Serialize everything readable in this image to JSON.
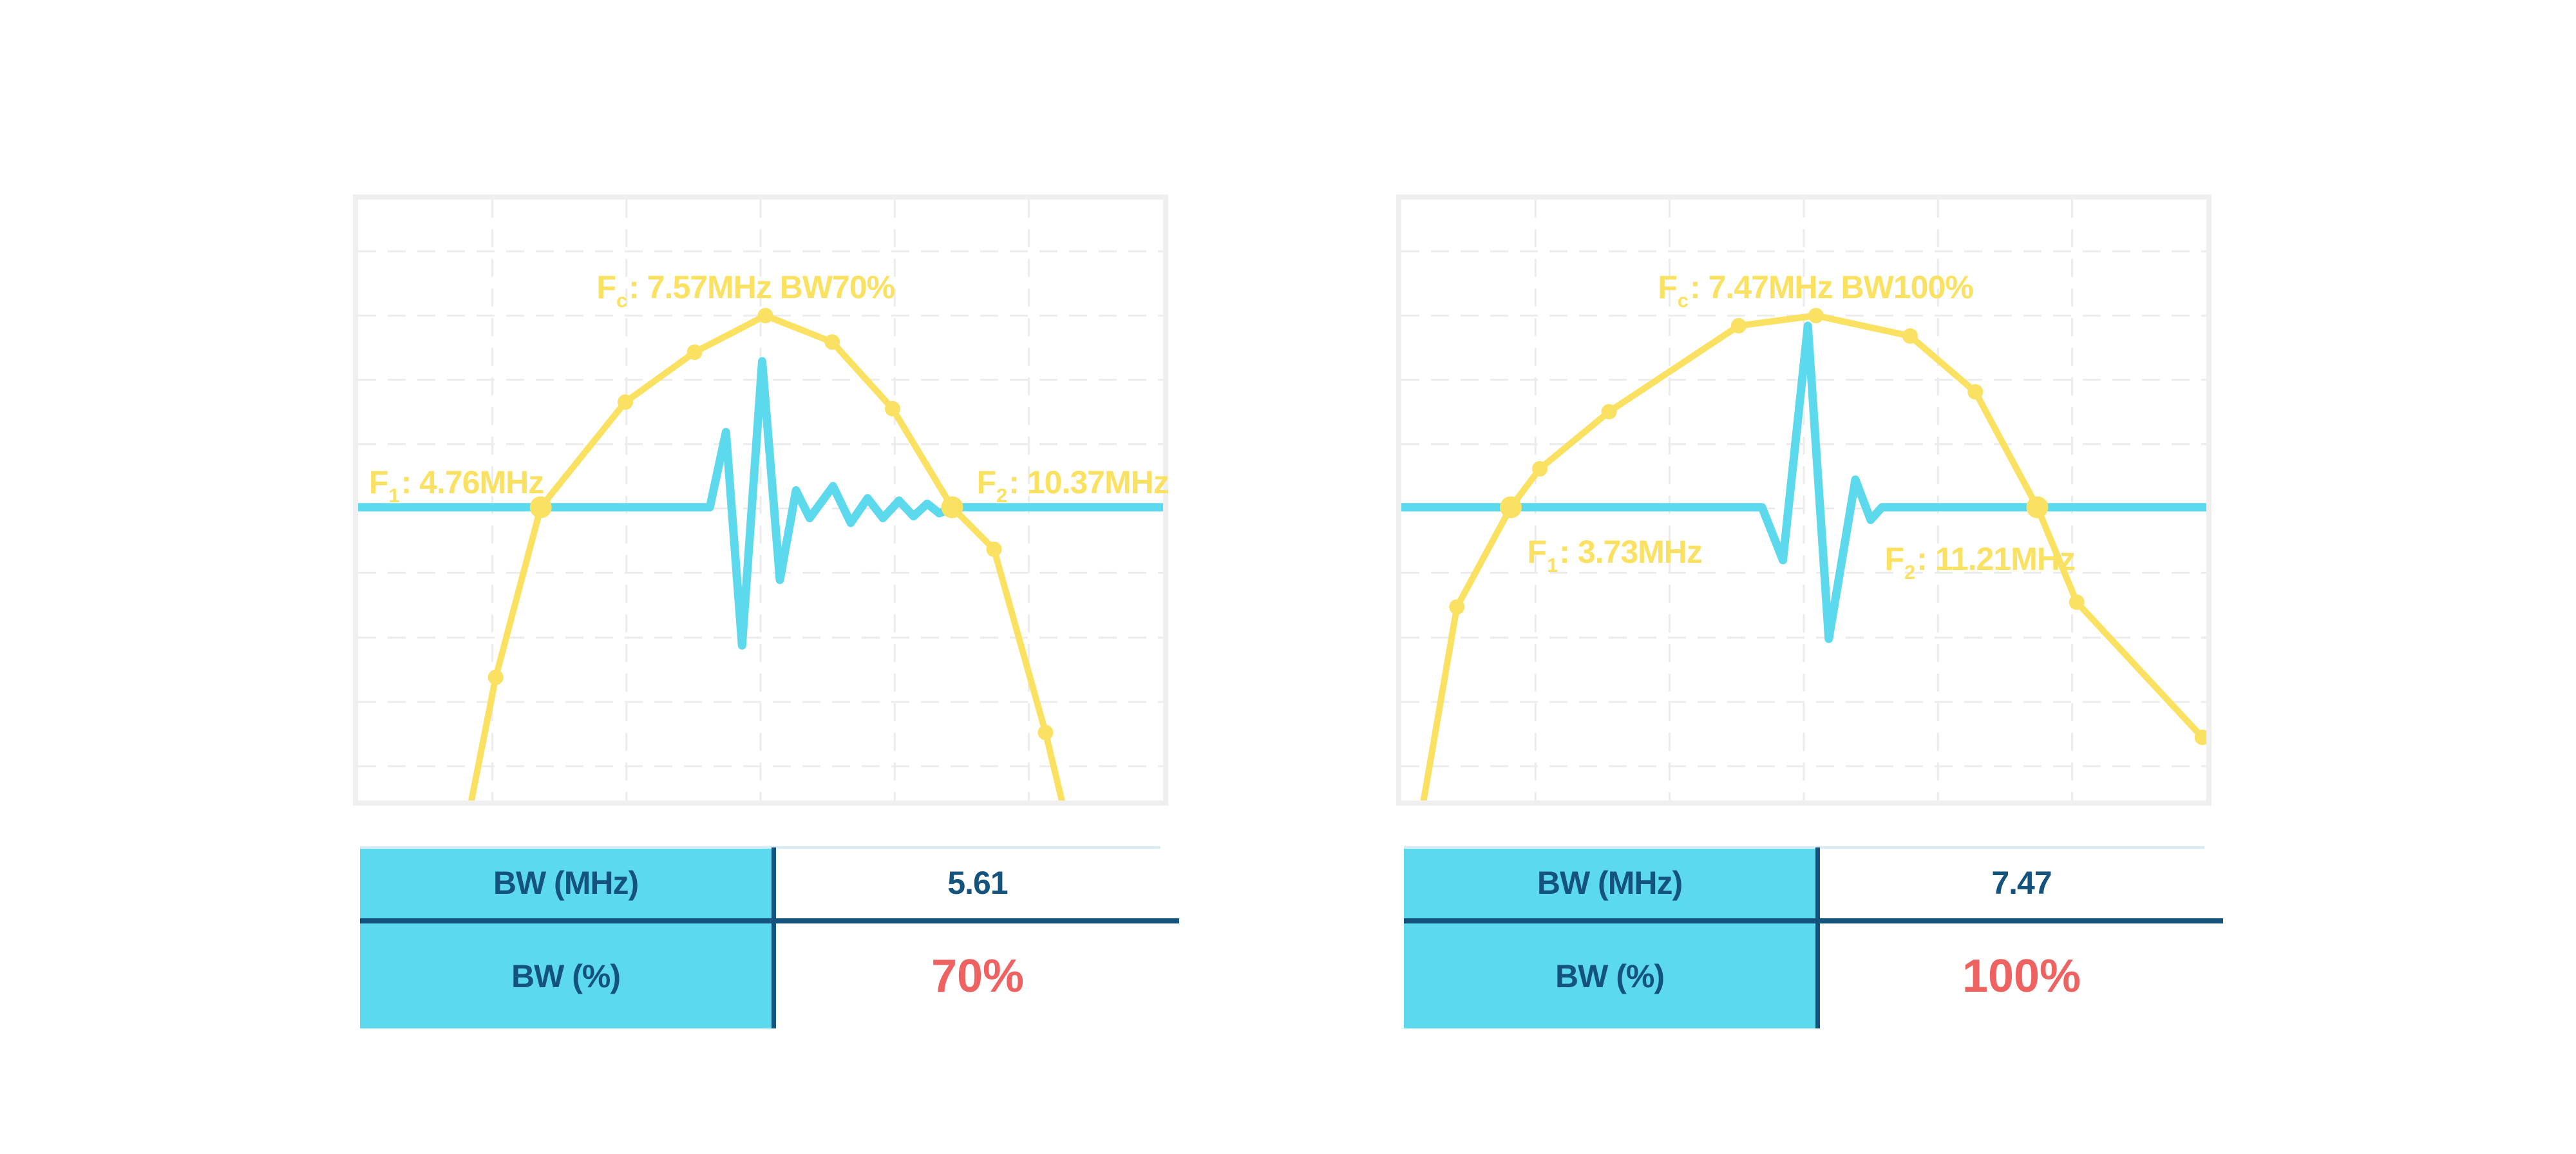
{
  "page": {
    "background": "#ffffff",
    "description": "Two ultrasound transducer bandwidth charts with BW summary tables"
  },
  "palette": {
    "yellow": "#fae161",
    "cyan": "#5cd9ec",
    "navy": "#15537f",
    "red": "#ee6262",
    "grid": "#ececec",
    "chart_border": "#efefef",
    "table_topline": "#d8ecf6",
    "table_header_bg": "#5cd9ec"
  },
  "chart_data": [
    {
      "type": "line",
      "id": "left",
      "title": "",
      "xlabel": "",
      "ylabel": "",
      "axes_ticks": "none visible",
      "legend": "none",
      "values": {
        "fc_mhz": 7.57,
        "f1_mhz": 4.76,
        "f2_mhz": 10.37,
        "bw_mhz": 5.61,
        "bw_percent": 70
      },
      "annotations": {
        "fc": {
          "f": "F",
          "sub": "c",
          "rest": ": 7.57MHz BW70%",
          "x": 0.475,
          "y": 0.137,
          "anchor": "center"
        },
        "f1": {
          "f": "F",
          "sub": "1",
          "rest": ": 4.76MHz",
          "x": 0.237,
          "y": 0.462,
          "anchor": "right"
        },
        "f2": {
          "f": "F",
          "sub": "2",
          "rest": ": 10.37MHz",
          "x": 0.762,
          "y": 0.462,
          "anchor": "left"
        }
      },
      "grid": {
        "v": [
          0.1667,
          0.3333,
          0.5,
          0.6667,
          0.8333
        ],
        "h": [
          0.086,
          0.193,
          0.3,
          0.407,
          0.514,
          0.621,
          0.729,
          0.836,
          0.943
        ]
      },
      "series": [
        {
          "name": "spectrum-envelope",
          "color_key": "yellow",
          "stroke_width": 10,
          "marker_small_r": 12,
          "marker_big_r": 17,
          "points": [
            [
              0.132,
              1.06,
              0
            ],
            [
              0.171,
              0.795,
              1
            ],
            [
              0.227,
              0.512,
              2
            ],
            [
              0.332,
              0.337,
              1
            ],
            [
              0.418,
              0.254,
              1
            ],
            [
              0.506,
              0.193,
              1
            ],
            [
              0.589,
              0.237,
              1
            ],
            [
              0.664,
              0.348,
              1
            ],
            [
              0.738,
              0.512,
              2
            ],
            [
              0.79,
              0.582,
              1
            ],
            [
              0.854,
              0.887,
              1
            ],
            [
              0.885,
              1.06,
              0
            ]
          ]
        },
        {
          "name": "pulse-waveform",
          "color_key": "cyan",
          "stroke_width": 13,
          "points": [
            [
              0.0,
              0.512
            ],
            [
              0.437,
              0.512
            ],
            [
              0.457,
              0.387
            ],
            [
              0.477,
              0.742
            ],
            [
              0.502,
              0.269
            ],
            [
              0.524,
              0.633
            ],
            [
              0.544,
              0.484
            ],
            [
              0.561,
              0.53
            ],
            [
              0.59,
              0.477
            ],
            [
              0.612,
              0.538
            ],
            [
              0.633,
              0.497
            ],
            [
              0.652,
              0.53
            ],
            [
              0.672,
              0.501
            ],
            [
              0.69,
              0.527
            ],
            [
              0.707,
              0.506
            ],
            [
              0.722,
              0.522
            ],
            [
              0.74,
              0.512
            ],
            [
              1.0,
              0.512
            ]
          ]
        }
      ]
    },
    {
      "type": "line",
      "id": "right",
      "title": "",
      "xlabel": "",
      "ylabel": "",
      "axes_ticks": "none visible",
      "legend": "none",
      "values": {
        "fc_mhz": 7.47,
        "f1_mhz": 3.73,
        "f2_mhz": 11.21,
        "bw_mhz": 7.47,
        "bw_percent": 100
      },
      "annotations": {
        "fc": {
          "f": "F",
          "sub": "c",
          "rest": ": 7.47MHz BW100%",
          "x": 0.508,
          "y": 0.137,
          "anchor": "center"
        },
        "f1": {
          "f": "F",
          "sub": "1",
          "rest": ": 3.73MHz",
          "x": 0.15,
          "y": 0.578,
          "anchor": "left"
        },
        "f2": {
          "f": "F",
          "sub": "2",
          "rest": ": 11.21MHz",
          "x": 0.594,
          "y": 0.59,
          "anchor": "left"
        }
      },
      "grid": {
        "v": [
          0.1667,
          0.3333,
          0.5,
          0.6667,
          0.8333
        ],
        "h": [
          0.086,
          0.193,
          0.3,
          0.407,
          0.514,
          0.621,
          0.729,
          0.836,
          0.943
        ]
      },
      "series": [
        {
          "name": "spectrum-envelope",
          "color_key": "yellow",
          "stroke_width": 10,
          "marker_small_r": 12,
          "marker_big_r": 17,
          "points": [
            [
              0.02,
              1.06,
              0
            ],
            [
              0.069,
              0.678,
              1
            ],
            [
              0.136,
              0.512,
              2
            ],
            [
              0.172,
              0.448,
              1
            ],
            [
              0.258,
              0.353,
              1
            ],
            [
              0.419,
              0.21,
              1
            ],
            [
              0.515,
              0.193,
              1
            ],
            [
              0.632,
              0.227,
              1
            ],
            [
              0.713,
              0.32,
              1
            ],
            [
              0.79,
              0.512,
              2
            ],
            [
              0.839,
              0.67,
              1
            ],
            [
              0.995,
              0.895,
              1
            ]
          ]
        },
        {
          "name": "pulse-waveform",
          "color_key": "cyan",
          "stroke_width": 13,
          "points": [
            [
              0.0,
              0.512
            ],
            [
              0.448,
              0.512
            ],
            [
              0.474,
              0.6
            ],
            [
              0.505,
              0.21
            ],
            [
              0.531,
              0.731
            ],
            [
              0.564,
              0.466
            ],
            [
              0.583,
              0.533
            ],
            [
              0.597,
              0.512
            ],
            [
              1.0,
              0.512
            ]
          ]
        }
      ]
    }
  ],
  "tables": [
    {
      "rows": [
        {
          "label": "BW (MHz)",
          "value": "5.61"
        },
        {
          "label": "BW (%)",
          "value": "70%"
        }
      ]
    },
    {
      "rows": [
        {
          "label": "BW (MHz)",
          "value": "7.47"
        },
        {
          "label": "BW (%)",
          "value": "100%"
        }
      ]
    }
  ]
}
